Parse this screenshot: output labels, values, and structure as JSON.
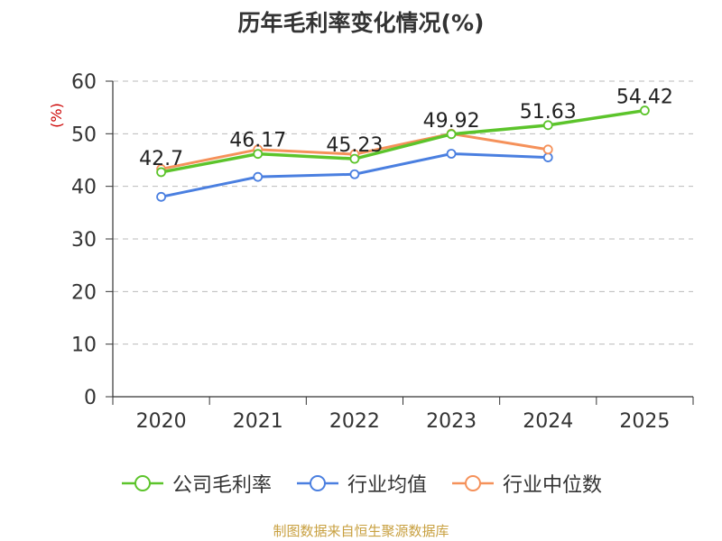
{
  "chart_data": {
    "type": "line",
    "title": "历年毛利率变化情况(%)",
    "ylabel": "(%)",
    "xlabel": "",
    "categories": [
      "2020",
      "2021",
      "2022",
      "2023",
      "2024",
      "2025"
    ],
    "ylim": [
      0,
      60
    ],
    "yticks": [
      0,
      10,
      20,
      30,
      40,
      50,
      60
    ],
    "grid": true,
    "legend_position": "bottom",
    "series": [
      {
        "name": "公司毛利率",
        "color": "#5cc42b",
        "values": [
          42.7,
          46.17,
          45.23,
          49.92,
          51.63,
          54.42
        ],
        "labels": [
          "42.7",
          "46.17",
          "45.23",
          "49.92",
          "51.63",
          "54.42"
        ]
      },
      {
        "name": "行业均值",
        "color": "#4a7fe0",
        "values": [
          38.0,
          41.8,
          42.3,
          46.2,
          45.5,
          null
        ]
      },
      {
        "name": "行业中位数",
        "color": "#f5915a",
        "values": [
          43.3,
          47.0,
          46.1,
          50.0,
          47.0,
          null
        ]
      }
    ]
  },
  "source": "制图数据来自恒生聚源数据库"
}
